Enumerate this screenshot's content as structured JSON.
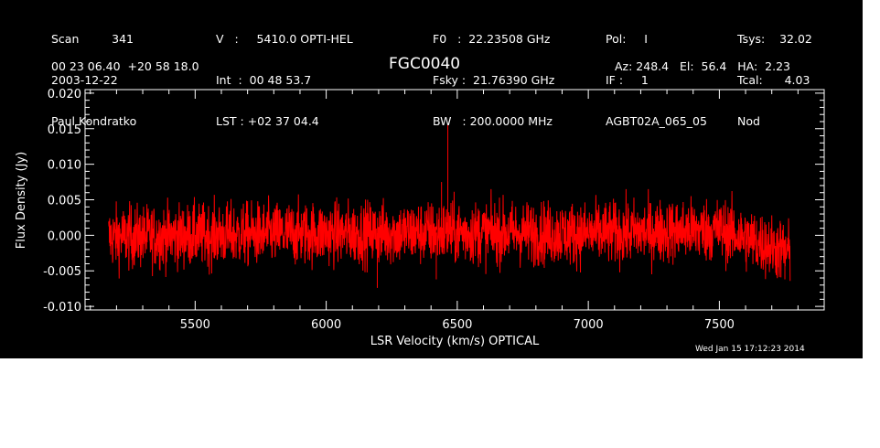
{
  "header": {
    "col1": [
      "Scan         341",
      "2003-12-22",
      "Paul Kondratko"
    ],
    "col2": [
      "V   :     5410.0 OPTI-HEL",
      "Int  :  00 48 53.7",
      "LST : +02 37 04.4"
    ],
    "col3": [
      "F0   :  22.23508 GHz",
      "Fsky :  21.76390 GHz",
      "BW   : 200.0000 MHz"
    ],
    "col4": [
      "Pol:     I",
      "IF :     1",
      "AGBT02A_065_05"
    ],
    "col5": [
      "Tsys:    32.02",
      "Tcal:      4.03",
      "Nod"
    ],
    "coords": "00 23 06.40  +20 58 18.0",
    "source": "FGC0040",
    "azel": "Az: 248.4   El:  56.4   HA:  2.23",
    "timestamp": "Wed Jan 15 17:12:23 2014"
  },
  "colors": {
    "background": "#000000",
    "axes": "#ffffff",
    "trace": "#ff0000"
  },
  "chart_data": {
    "type": "line",
    "title": "FGC0040",
    "xlabel": "LSR Velocity (km/s) OPTICAL",
    "ylabel": "Flux Density (Jy)",
    "xlim": [
      5080,
      7900
    ],
    "ylim": [
      -0.0105,
      0.0205
    ],
    "xticks": [
      5500,
      6000,
      6500,
      7000,
      7500
    ],
    "xtick_labels": [
      "5500",
      "6000",
      "6500",
      "7000",
      "7500"
    ],
    "yticks": [
      -0.01,
      -0.005,
      0.0,
      0.005,
      0.01,
      0.015,
      0.02
    ],
    "ytick_labels": [
      "-0.010",
      "-0.005",
      "0.000",
      "0.005",
      "0.010",
      "0.015",
      "0.020"
    ],
    "grid": false,
    "series": [
      {
        "x_range": [
          5170,
          7770
        ],
        "noise_rms": 0.0022,
        "baseline": [
          [
            5170,
            -0.0003
          ],
          [
            5800,
            0.0002
          ],
          [
            6500,
            0.0004
          ],
          [
            7000,
            0.0002
          ],
          [
            7500,
            0.0008
          ],
          [
            7770,
            -0.0025
          ]
        ],
        "spikes": [
          {
            "x": 6464,
            "y": 0.0155
          },
          {
            "x": 6440,
            "y": 0.0075
          },
          {
            "x": 6195,
            "y": -0.0074
          },
          {
            "x": 6420,
            "y": -0.0062
          },
          {
            "x": 7750,
            "y": -0.0062
          }
        ]
      }
    ]
  }
}
